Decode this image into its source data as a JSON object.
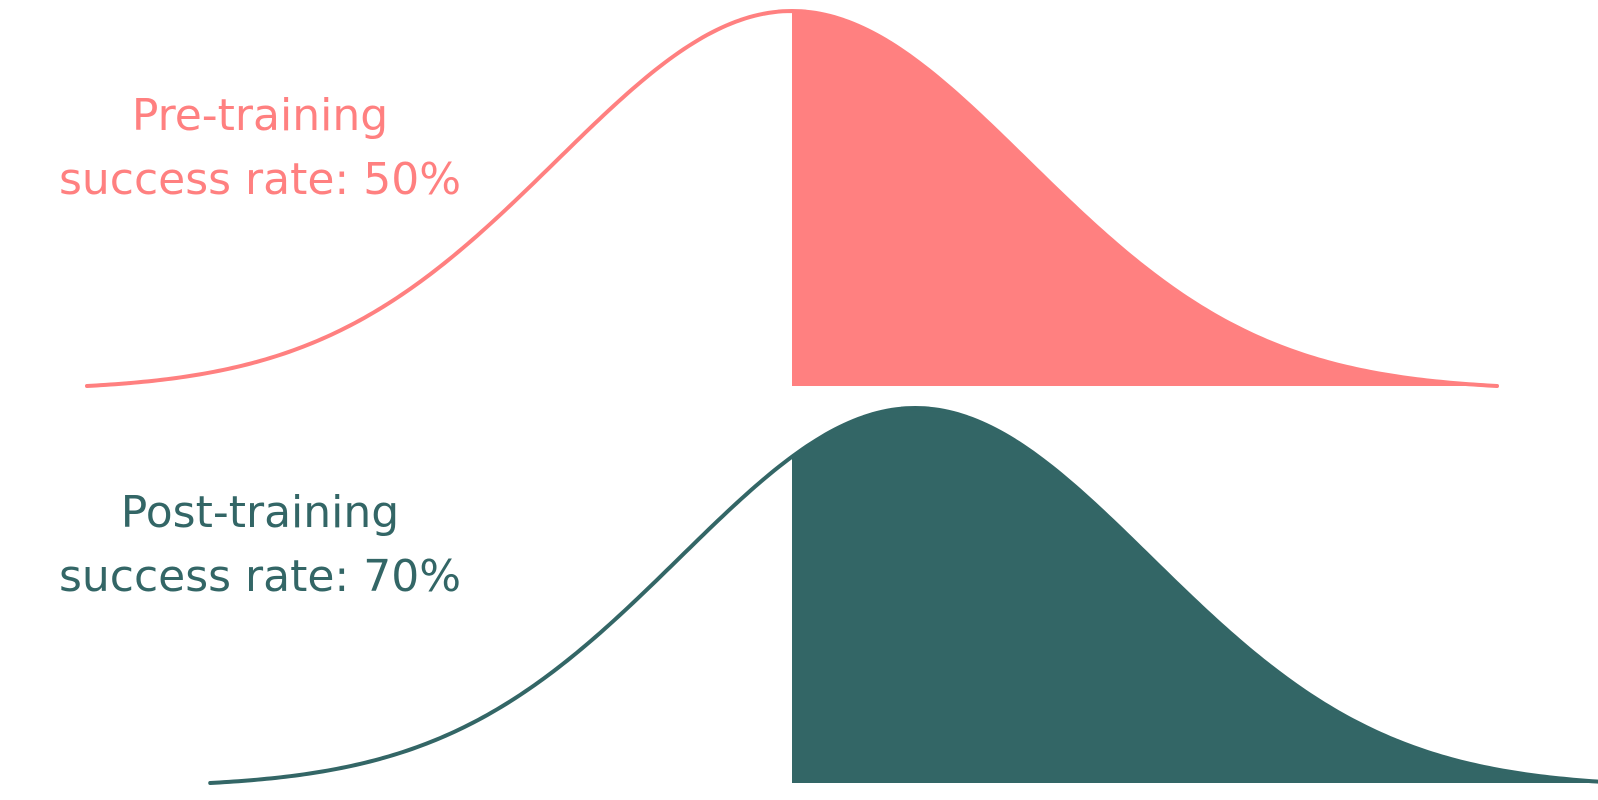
{
  "chart_data": {
    "type": "area",
    "title": "",
    "xlabel": "",
    "ylabel": "",
    "grid": false,
    "legend": "none",
    "series": [
      {
        "label_line1": "Pre-training",
        "label_line2": "success rate: 50%",
        "success_rate": 0.5,
        "color": "#ff8080"
      },
      {
        "label_line1": "Post-training",
        "label_line2": "success rate: 70%",
        "success_rate": 0.7,
        "color": "#336666"
      }
    ]
  }
}
